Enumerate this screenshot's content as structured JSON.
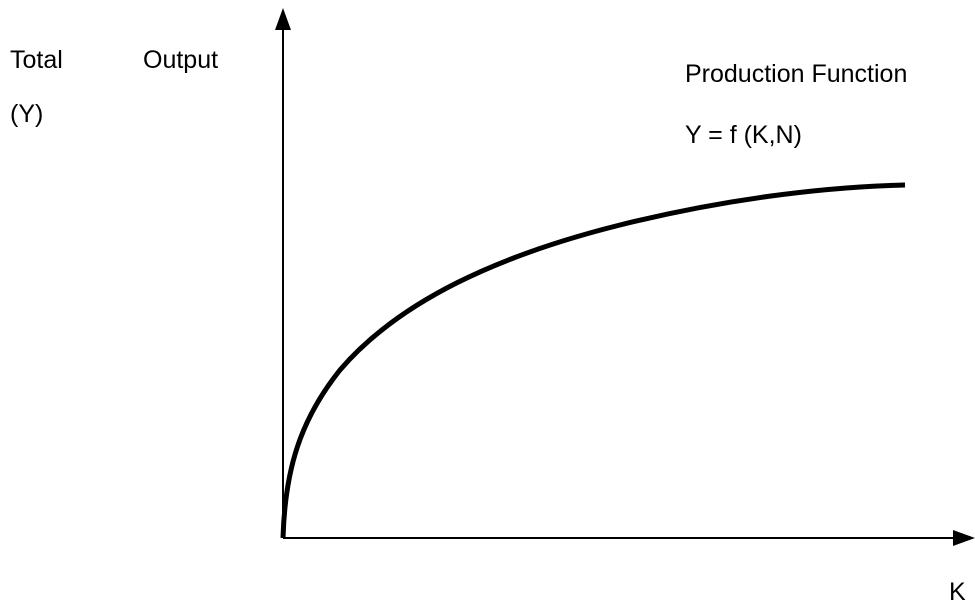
{
  "y_axis_label": {
    "words": [
      "Total",
      "Output"
    ],
    "symbol": "(Y)"
  },
  "curve_label": {
    "name": "Production Function",
    "formula": "Y = f (K,N)"
  },
  "x_axis_label": "K"
}
